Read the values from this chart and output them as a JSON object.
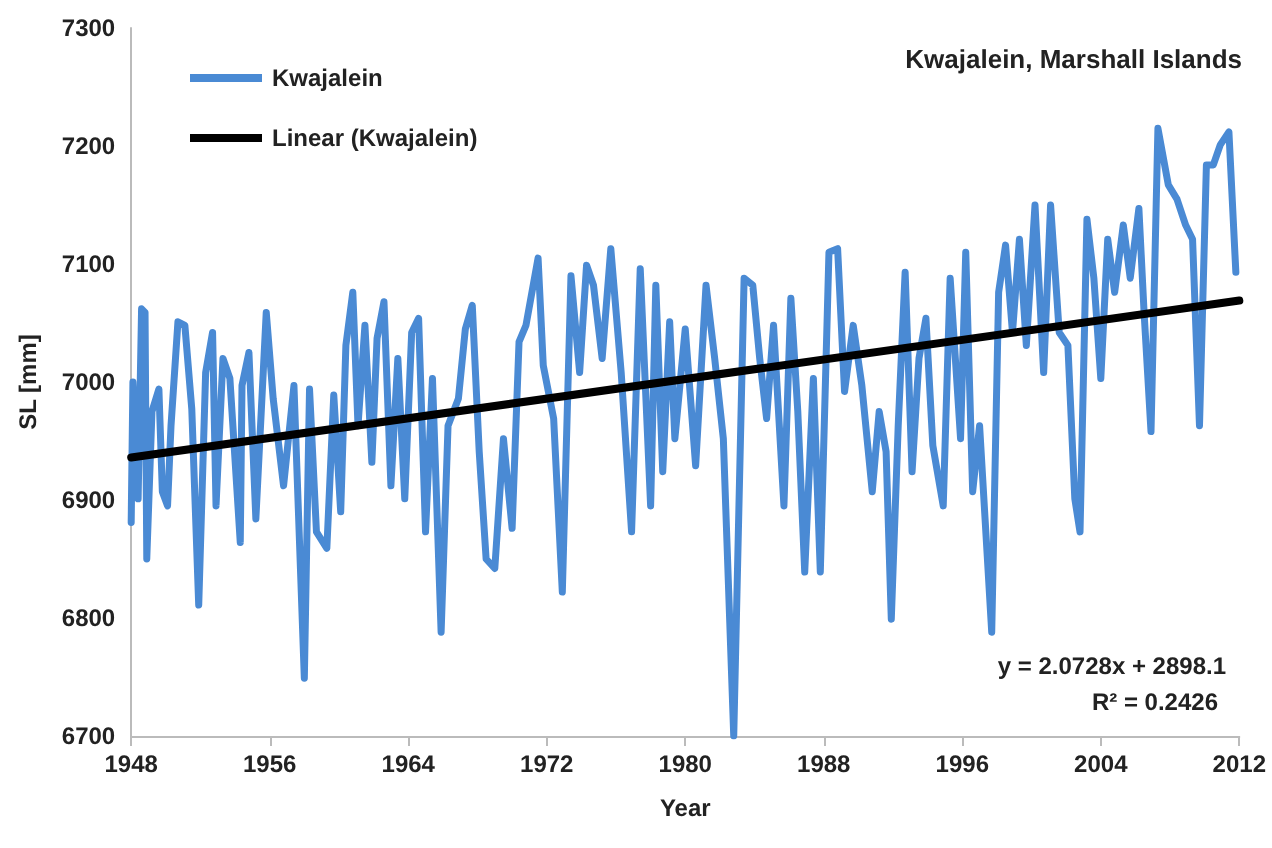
{
  "chart_data": {
    "type": "line",
    "title": "Kwajalein, Marshall Islands",
    "xlabel": "Year",
    "ylabel": "SL [mm]",
    "xlim": [
      1948,
      2012
    ],
    "xticks": [
      1948,
      1956,
      1964,
      1972,
      1980,
      1988,
      1996,
      2004,
      2012
    ],
    "ylim": [
      6700,
      7300
    ],
    "yticks": [
      6700,
      6800,
      6900,
      7000,
      7100,
      7200,
      7300
    ],
    "grid": false,
    "legend": "top left",
    "marker": "none",
    "line_style": "solid",
    "annotations": [
      "y = 2.0728x + 2898.1",
      "R² = 0.2426"
    ],
    "series": [
      {
        "name": "Kwajalein",
        "color": "#4a8ad4",
        "x": [
          1948.0,
          1948.1,
          1948.4,
          1948.6,
          1948.8,
          1948.9,
          1949.2,
          1949.6,
          1949.8,
          1950.1,
          1950.3,
          1950.7,
          1951.1,
          1951.5,
          1951.9,
          1952.3,
          1952.7,
          1952.9,
          1953.3,
          1953.7,
          1954.3,
          1954.4,
          1954.8,
          1955.2,
          1955.8,
          1956.2,
          1956.8,
          1957.4,
          1958.0,
          1958.3,
          1958.7,
          1959.3,
          1959.7,
          1960.1,
          1960.4,
          1960.8,
          1961.1,
          1961.5,
          1961.9,
          1962.2,
          1962.6,
          1963.0,
          1963.4,
          1963.8,
          1964.2,
          1964.6,
          1965.0,
          1965.4,
          1965.9,
          1966.3,
          1966.9,
          1967.3,
          1967.7,
          1968.1,
          1968.5,
          1969.0,
          1969.5,
          1970.0,
          1970.4,
          1970.8,
          1971.5,
          1971.8,
          1972.4,
          1972.9,
          1973.4,
          1973.9,
          1974.3,
          1974.7,
          1975.2,
          1975.7,
          1976.3,
          1976.9,
          1977.4,
          1978.0,
          1978.3,
          1978.7,
          1979.1,
          1979.4,
          1980.0,
          1980.6,
          1981.2,
          1981.7,
          1982.2,
          1982.8,
          1983.4,
          1983.9,
          1984.3,
          1984.7,
          1985.1,
          1985.7,
          1986.1,
          1986.5,
          1986.9,
          1987.4,
          1987.8,
          1988.3,
          1988.8,
          1989.2,
          1989.7,
          1990.2,
          1990.8,
          1991.2,
          1991.6,
          1991.9,
          1992.3,
          1992.7,
          1993.1,
          1993.5,
          1993.9,
          1994.3,
          1994.9,
          1995.3,
          1995.9,
          1996.2,
          1996.6,
          1997.0,
          1997.7,
          1998.1,
          1998.5,
          1998.9,
          1999.3,
          1999.7,
          2000.2,
          2000.7,
          2001.1,
          2001.6,
          2002.1,
          2002.5,
          2002.8,
          2003.2,
          2003.6,
          2004.0,
          2004.4,
          2004.8,
          2005.3,
          2005.7,
          2006.2,
          2006.5,
          2006.9,
          2007.3,
          2007.9,
          2008.4,
          2008.9,
          2009.3,
          2009.7,
          2010.1,
          2010.5,
          2010.9,
          2011.4,
          2011.8
        ],
        "values": [
          6881,
          7000,
          6901,
          7062,
          7059,
          6850,
          6975,
          6994,
          6907,
          6895,
          6963,
          7051,
          7048,
          6977,
          6811,
          7008,
          7042,
          6895,
          7020,
          7003,
          6864,
          6997,
          7025,
          6884,
          7059,
          6986,
          6912,
          6997,
          6749,
          6994,
          6873,
          6859,
          6989,
          6890,
          7031,
          7076,
          6963,
          7048,
          6932,
          7037,
          7068,
          6912,
          7020,
          6901,
          7042,
          7054,
          6873,
          7003,
          6788,
          6963,
          6986,
          7045,
          7065,
          6941,
          6850,
          6842,
          6952,
          6876,
          7034,
          7048,
          7105,
          7014,
          6969,
          6822,
          7090,
          7008,
          7099,
          7082,
          7020,
          7113,
          7008,
          6873,
          7096,
          6895,
          7082,
          6924,
          7051,
          6952,
          7045,
          6929,
          7082,
          7020,
          6952,
          6700,
          7088,
          7082,
          7020,
          6969,
          7048,
          6895,
          7071,
          6975,
          6839,
          7003,
          6839,
          7110,
          7113,
          6992,
          7048,
          6997,
          6907,
          6975,
          6941,
          6799,
          6963,
          7093,
          6924,
          7020,
          7054,
          6946,
          6895,
          7088,
          6952,
          7110,
          6907,
          6963,
          6788,
          7076,
          7116,
          7042,
          7121,
          7031,
          7150,
          7008,
          7150,
          7042,
          7031,
          6901,
          6873,
          7138,
          7088,
          7003,
          7121,
          7076,
          7133,
          7088,
          7147,
          7059,
          6958,
          7215,
          7167,
          7155,
          7133,
          7121,
          6963,
          7184,
          7184,
          7201,
          7212,
          7093
        ]
      },
      {
        "name": "Linear (Kwajalein)",
        "color": "#000000",
        "x": [
          1948,
          2012
        ],
        "values": [
          6936,
          7069
        ]
      }
    ]
  }
}
